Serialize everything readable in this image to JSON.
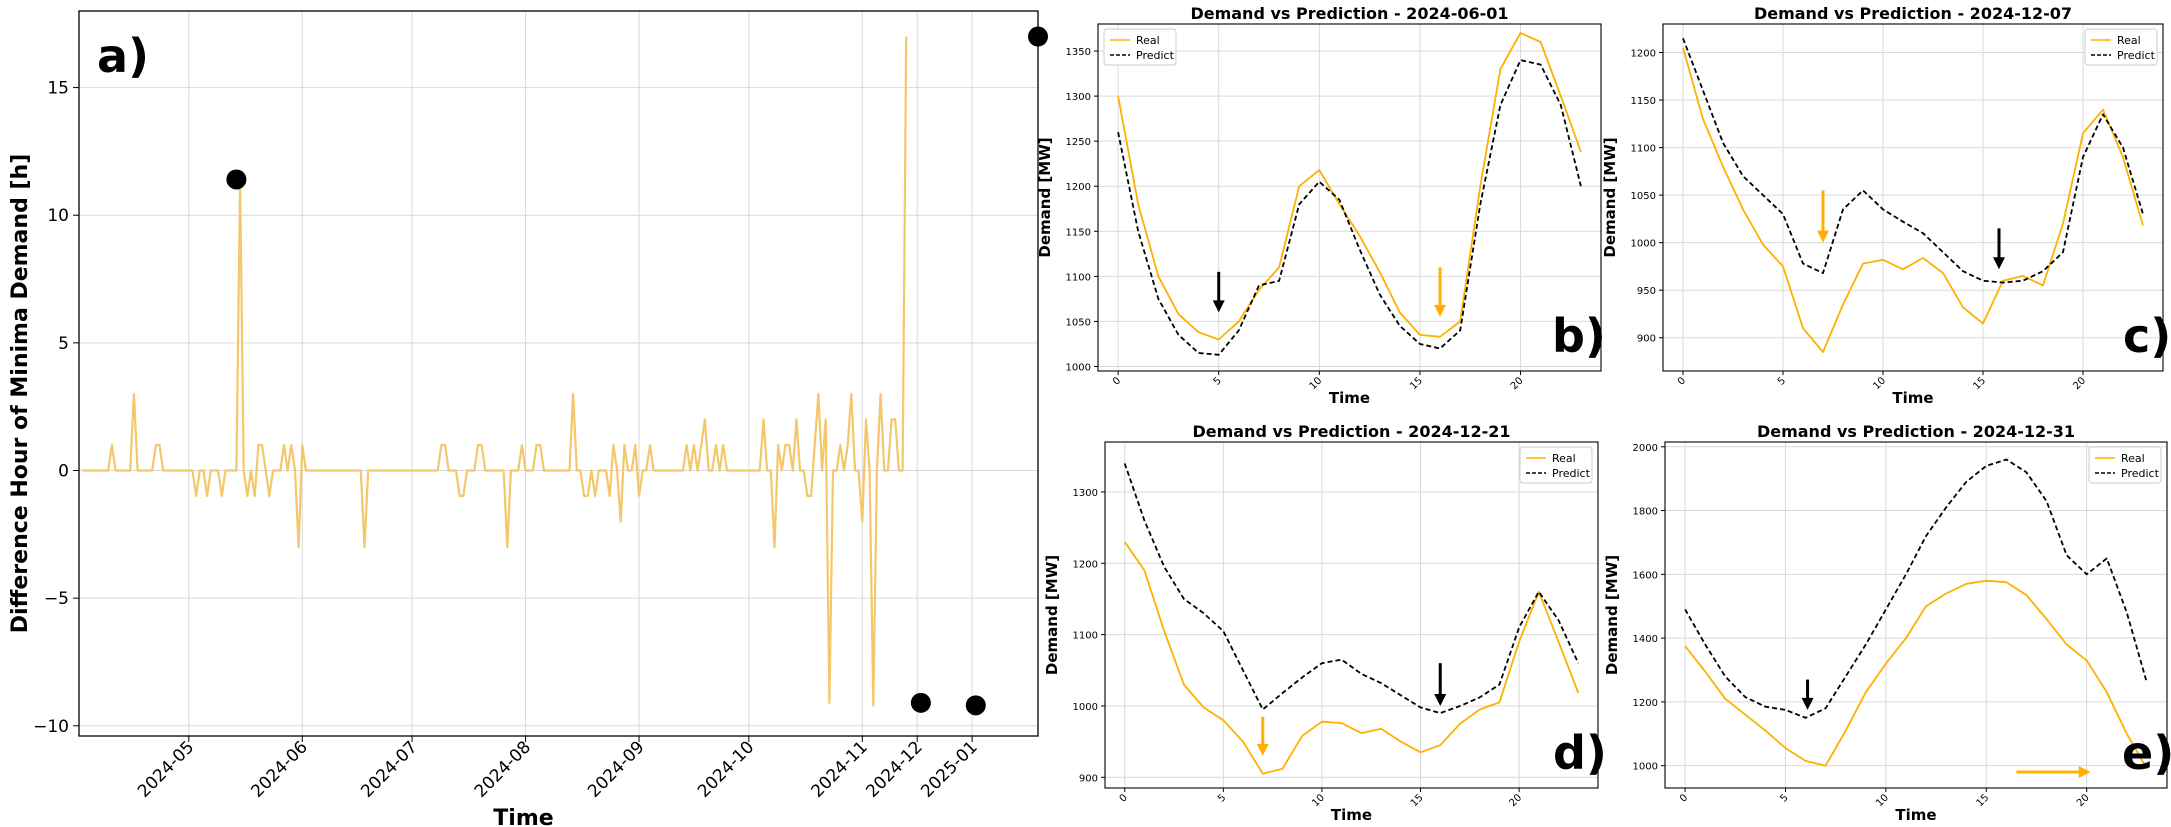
{
  "chart_data": [
    {
      "type": "line",
      "panel_label": "a)",
      "xlabel": "Time",
      "ylabel": "Difference Hour of Minima Demand [h]",
      "ylim": [
        -10.4,
        18
      ],
      "xlim": [
        0,
        262
      ],
      "yticks": [
        -10,
        -5,
        0,
        5,
        10,
        15
      ],
      "xticks": [
        {
          "pos": 30,
          "label": "2024-05"
        },
        {
          "pos": 61,
          "label": "2024-06"
        },
        {
          "pos": 91,
          "label": "2024-07"
        },
        {
          "pos": 122,
          "label": "2024-08"
        },
        {
          "pos": 153,
          "label": "2024-09"
        },
        {
          "pos": 183,
          "label": "2024-10"
        },
        {
          "pos": 214,
          "label": "2024-11"
        },
        {
          "pos": 244,
          "label": "2025-01"
        }
      ],
      "xticks_extra": [
        {
          "pos": 229,
          "label": "2024-12"
        }
      ],
      "line_color": "#f5c76b",
      "series": [
        {
          "name": "diff",
          "x_start": 1,
          "values": [
            0,
            0,
            0,
            0,
            0,
            0,
            0,
            0,
            1,
            0,
            0,
            0,
            0,
            0,
            3,
            0,
            0,
            0,
            0,
            0,
            1,
            1,
            0,
            0,
            0,
            0,
            0,
            0,
            0,
            0,
            0,
            -1,
            0,
            0,
            -1,
            0,
            0,
            0,
            -1,
            0,
            0,
            0,
            0,
            11.4,
            0,
            -1,
            0,
            -1,
            1,
            1,
            0,
            -1,
            0,
            0,
            0,
            1,
            0,
            1,
            0,
            -3,
            1,
            0,
            0,
            0,
            0,
            0,
            0,
            0,
            0,
            0,
            0,
            0,
            0,
            0,
            0,
            0,
            0,
            -3,
            0,
            0,
            0,
            0,
            0,
            0,
            0,
            0,
            0,
            0,
            0,
            0,
            0,
            0,
            0,
            0,
            0,
            0,
            0,
            0,
            1,
            1,
            0,
            0,
            0,
            -1,
            -1,
            0,
            0,
            0,
            1,
            1,
            0,
            0,
            0,
            0,
            0,
            0,
            -3,
            0,
            0,
            0,
            1,
            0,
            0,
            0,
            1,
            1,
            0,
            0,
            0,
            0,
            0,
            0,
            0,
            0,
            3,
            0,
            0,
            -1,
            -1,
            0,
            -1,
            0,
            0,
            0,
            -1,
            1,
            0,
            -2,
            1,
            0,
            0,
            1,
            -1,
            0,
            0,
            1,
            0,
            0,
            0,
            0,
            0,
            0,
            0,
            0,
            0,
            1,
            0,
            1,
            0,
            1,
            2,
            0,
            0,
            1,
            0,
            1,
            0,
            0,
            0,
            0,
            0,
            0,
            0,
            0,
            0,
            0,
            2,
            0,
            0,
            -3,
            1,
            0,
            1,
            1,
            0,
            2,
            0,
            0,
            -1,
            -1,
            1,
            3,
            0,
            2,
            -9.1,
            0,
            0,
            1,
            0,
            1,
            3,
            0,
            0,
            -2,
            2,
            0,
            -9.2,
            0,
            3,
            0,
            0,
            2,
            2,
            0,
            0,
            17
          ]
        }
      ],
      "markers": [
        {
          "x": 43,
          "y": 11.4
        },
        {
          "x": 230,
          "y": -9.1
        },
        {
          "x": 245,
          "y": -9.2
        },
        {
          "x": 262,
          "y": 17
        }
      ]
    },
    {
      "type": "line",
      "panel_label": "b)",
      "title": "Demand vs Prediction - 2024-06-01",
      "xlabel": "Time",
      "ylabel": "Demand [MW]",
      "xlim": [
        -1,
        24
      ],
      "ylim": [
        995,
        1380
      ],
      "yticks": [
        1000,
        1050,
        1100,
        1150,
        1200,
        1250,
        1300,
        1350
      ],
      "xticks": [
        0,
        5,
        10,
        15,
        20
      ],
      "legend": "top-left",
      "series": [
        {
          "name": "Real",
          "color": "#ffb000",
          "dashed": false,
          "values": [
            1300,
            1180,
            1100,
            1058,
            1038,
            1030,
            1050,
            1085,
            1110,
            1200,
            1218,
            1180,
            1145,
            1105,
            1060,
            1035,
            1033,
            1050,
            1200,
            1330,
            1370,
            1360,
            1300,
            1238
          ]
        },
        {
          "name": "Predict",
          "color": "#000000",
          "dashed": true,
          "values": [
            1260,
            1150,
            1075,
            1035,
            1015,
            1013,
            1040,
            1090,
            1095,
            1180,
            1205,
            1185,
            1130,
            1080,
            1045,
            1025,
            1020,
            1040,
            1180,
            1290,
            1340,
            1335,
            1290,
            1200
          ]
        }
      ],
      "arrows": [
        {
          "x": 5,
          "y_from": 1105,
          "y_to": 1060,
          "color": "#000000"
        },
        {
          "x": 16,
          "y_from": 1110,
          "y_to": 1055,
          "color": "#ffb000"
        }
      ]
    },
    {
      "type": "line",
      "panel_label": "c)",
      "title": "Demand vs Prediction - 2024-12-07",
      "xlabel": "Time",
      "ylabel": "Demand [MW]",
      "xlim": [
        -1,
        24
      ],
      "ylim": [
        865,
        1230
      ],
      "yticks": [
        900,
        950,
        1000,
        1050,
        1100,
        1150,
        1200
      ],
      "xticks": [
        0,
        5,
        10,
        15,
        20
      ],
      "legend": "top-right",
      "series": [
        {
          "name": "Real",
          "color": "#ffb000",
          "dashed": false,
          "values": [
            1205,
            1130,
            1080,
            1035,
            998,
            975,
            910,
            885,
            935,
            978,
            982,
            972,
            984,
            968,
            932,
            915,
            960,
            965,
            955,
            1020,
            1115,
            1140,
            1090,
            1018
          ]
        },
        {
          "name": "Predict",
          "color": "#000000",
          "dashed": true,
          "values": [
            1215,
            1160,
            1105,
            1070,
            1050,
            1030,
            978,
            968,
            1035,
            1055,
            1035,
            1022,
            1010,
            990,
            970,
            960,
            958,
            960,
            970,
            990,
            1090,
            1135,
            1100,
            1030
          ]
        }
      ],
      "arrows": [
        {
          "x": 7,
          "y_from": 1055,
          "y_to": 1000,
          "color": "#ffb000"
        },
        {
          "x": 15.8,
          "y_from": 1015,
          "y_to": 972,
          "color": "#000000"
        }
      ]
    },
    {
      "type": "line",
      "panel_label": "d)",
      "title": "Demand vs Prediction - 2024-12-21",
      "xlabel": "Time",
      "ylabel": "Demand [MW]",
      "xlim": [
        -1,
        24
      ],
      "ylim": [
        885,
        1370
      ],
      "yticks": [
        900,
        1000,
        1100,
        1200,
        1300
      ],
      "xticks": [
        0,
        5,
        10,
        15,
        20
      ],
      "legend": "top-right",
      "series": [
        {
          "name": "Real",
          "color": "#ffb000",
          "dashed": false,
          "values": [
            1230,
            1190,
            1105,
            1030,
            998,
            980,
            950,
            905,
            912,
            958,
            978,
            976,
            962,
            968,
            950,
            935,
            945,
            975,
            995,
            1005,
            1090,
            1160,
            1090,
            1018
          ]
        },
        {
          "name": "Predict",
          "color": "#000000",
          "dashed": true,
          "values": [
            1340,
            1260,
            1195,
            1150,
            1130,
            1105,
            1050,
            995,
            1018,
            1040,
            1060,
            1065,
            1045,
            1032,
            1015,
            998,
            990,
            1000,
            1012,
            1030,
            1110,
            1160,
            1120,
            1060
          ]
        }
      ],
      "arrows": [
        {
          "x": 7,
          "y_from": 985,
          "y_to": 930,
          "color": "#ffb000"
        },
        {
          "x": 16,
          "y_from": 1060,
          "y_to": 1000,
          "color": "#000000"
        }
      ]
    },
    {
      "type": "line",
      "panel_label": "e)",
      "title": "Demand vs Prediction - 2024-12-31",
      "xlabel": "Time",
      "ylabel": "Demand [MW]",
      "xlim": [
        -1,
        24
      ],
      "ylim": [
        930,
        2015
      ],
      "yticks": [
        1000,
        1200,
        1400,
        1600,
        1800,
        2000
      ],
      "xticks": [
        0,
        5,
        10,
        15,
        20
      ],
      "legend": "top-right",
      "series": [
        {
          "name": "Real",
          "color": "#ffb000",
          "dashed": false,
          "values": [
            1375,
            1295,
            1210,
            1160,
            1110,
            1055,
            1015,
            1000,
            1110,
            1230,
            1320,
            1400,
            1500,
            1540,
            1570,
            1580,
            1575,
            1535,
            1460,
            1380,
            1330,
            1230,
            1100,
            990
          ]
        },
        {
          "name": "Predict",
          "color": "#000000",
          "dashed": true,
          "values": [
            1490,
            1380,
            1280,
            1215,
            1185,
            1175,
            1150,
            1180,
            1280,
            1380,
            1490,
            1600,
            1720,
            1810,
            1890,
            1940,
            1960,
            1920,
            1830,
            1660,
            1600,
            1650,
            1480,
            1260
          ]
        }
      ],
      "arrows": [
        {
          "x": 6.1,
          "y_from": 1270,
          "y_to": 1175,
          "color": "#000000"
        },
        {
          "h": true,
          "y": 980,
          "x_from": 16.5,
          "x_to": 20.2,
          "color": "#ffb000"
        }
      ]
    }
  ]
}
